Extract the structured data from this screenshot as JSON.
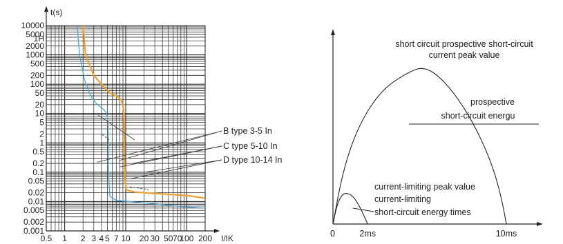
{
  "chart_data": [
    {
      "type": "line",
      "title": "",
      "xlabel": "I/IK",
      "ylabel": "t(s)",
      "xscale": "log",
      "yscale": "log",
      "grid": true,
      "xlim": [
        0.5,
        200
      ],
      "ylim": [
        0.001,
        10000
      ],
      "x_ticks": [
        {
          "value": 0.5,
          "label": "0.5"
        },
        {
          "value": 1,
          "label": "1"
        },
        {
          "value": 2,
          "label": "2"
        },
        {
          "value": 3,
          "label": "3"
        },
        {
          "value": 4,
          "label": "4"
        },
        {
          "value": 5,
          "label": "5"
        },
        {
          "value": 7,
          "label": "7"
        },
        {
          "value": 10,
          "label": "10"
        },
        {
          "value": 20,
          "label": "20"
        },
        {
          "value": 30,
          "label": "30"
        },
        {
          "value": 50,
          "label": "50"
        },
        {
          "value": 70,
          "label": "70"
        },
        {
          "value": 100,
          "label": "100"
        },
        {
          "value": 200,
          "label": "200"
        }
      ],
      "y_ticks": [
        {
          "value": 10000,
          "label": "10000"
        },
        {
          "value": 5000,
          "label": "5000"
        },
        {
          "value": 3600,
          "label": "1H"
        },
        {
          "value": 2000,
          "label": "2000"
        },
        {
          "value": 1000,
          "label": "1000"
        },
        {
          "value": 500,
          "label": "500"
        },
        {
          "value": 200,
          "label": "200"
        },
        {
          "value": 100,
          "label": "100"
        },
        {
          "value": 50,
          "label": "50"
        },
        {
          "value": 20,
          "label": "20"
        },
        {
          "value": 10,
          "label": "10"
        },
        {
          "value": 5,
          "label": "5"
        },
        {
          "value": 2,
          "label": "2"
        },
        {
          "value": 1,
          "label": "1"
        },
        {
          "value": 0.5,
          "label": "0.5"
        },
        {
          "value": 0.2,
          "label": "0.2"
        },
        {
          "value": 0.1,
          "label": "0.1"
        },
        {
          "value": 0.05,
          "label": "0.05"
        },
        {
          "value": 0.02,
          "label": "0.02"
        },
        {
          "value": 0.01,
          "label": "0.01"
        },
        {
          "value": 0.005,
          "label": "0.005"
        },
        {
          "value": 0.002,
          "label": "0.002"
        },
        {
          "value": 0.001,
          "label": "0.001"
        }
      ],
      "series": [
        {
          "name": "",
          "color": "#4aa3d6",
          "points": [
            [
              1.6,
              10000
            ],
            [
              1.75,
              1000
            ],
            [
              2.1,
              150
            ],
            [
              2.6,
              45
            ],
            [
              3.3,
              22
            ],
            [
              4.3,
              14
            ],
            [
              4.9,
              10
            ],
            [
              5.1,
              5
            ],
            [
              5.2,
              0.5
            ],
            [
              5.3,
              0.05
            ],
            [
              5.5,
              0.015
            ],
            [
              7,
              0.011
            ],
            [
              20,
              0.009
            ],
            [
              100,
              0.0065
            ],
            [
              200,
              0.006
            ]
          ]
        },
        {
          "name": "",
          "color": "#f0a030",
          "points": [
            [
              2.0,
              10000
            ],
            [
              2.2,
              1000
            ],
            [
              3.0,
              200
            ],
            [
              4.2,
              90
            ],
            [
              5.5,
              50
            ],
            [
              7.0,
              40
            ],
            [
              8.4,
              30
            ],
            [
              9.2,
              15
            ],
            [
              9.5,
              3
            ],
            [
              9.6,
              0.3
            ],
            [
              9.8,
              0.05
            ],
            [
              10.3,
              0.025
            ],
            [
              14,
              0.021
            ],
            [
              30,
              0.019
            ],
            [
              100,
              0.016
            ],
            [
              200,
              0.013
            ]
          ]
        }
      ],
      "annotations": [
        {
          "text": "B type 3-5 In",
          "pointers": [
            [
              3.4,
              0.22
            ],
            [
              7.8,
              0.25
            ]
          ]
        },
        {
          "text": "C type 5-10 In",
          "pointers": [
            [
              7.9,
              0.15
            ],
            [
              13,
              0.2
            ]
          ]
        },
        {
          "text": "D type 10-14 In",
          "pointers": [
            [
              12,
              0.06
            ],
            [
              21,
              0.1
            ]
          ]
        }
      ]
    },
    {
      "type": "line",
      "title": "",
      "xlabel": "",
      "ylabel": "",
      "xlim": [
        0,
        11
      ],
      "ylim": [
        0,
        1.15
      ],
      "x_ticks": [
        {
          "value": 0,
          "label": "0"
        },
        {
          "value": 2,
          "label": "2ms"
        },
        {
          "value": 10,
          "label": "10ms"
        }
      ],
      "series": [
        {
          "name": "",
          "color": "#222222",
          "points": [
            [
              0,
              0
            ],
            [
              0.6,
              0.35
            ],
            [
              1.5,
              0.63
            ],
            [
              2.8,
              0.85
            ],
            [
              4.3,
              0.96
            ],
            [
              5.3,
              1.0
            ],
            [
              6.5,
              0.9
            ],
            [
              7.8,
              0.7
            ],
            [
              8.8,
              0.48
            ],
            [
              9.4,
              0.3
            ],
            [
              9.8,
              0.12
            ],
            [
              10,
              0
            ]
          ]
        },
        {
          "name": "",
          "color": "#222222",
          "points": [
            [
              0,
              0
            ],
            [
              0.25,
              0.13
            ],
            [
              0.6,
              0.2
            ],
            [
              1.1,
              0.185
            ],
            [
              1.5,
              0.12
            ],
            [
              1.8,
              0.05
            ],
            [
              2.0,
              0
            ]
          ]
        }
      ],
      "labels": [
        "short circuit prospective short-circuit",
        "current peak value",
        "prospective",
        "short-circuit energu",
        "current-limiting peak value",
        "current-limiting",
        "short-circuit energy times"
      ]
    }
  ]
}
